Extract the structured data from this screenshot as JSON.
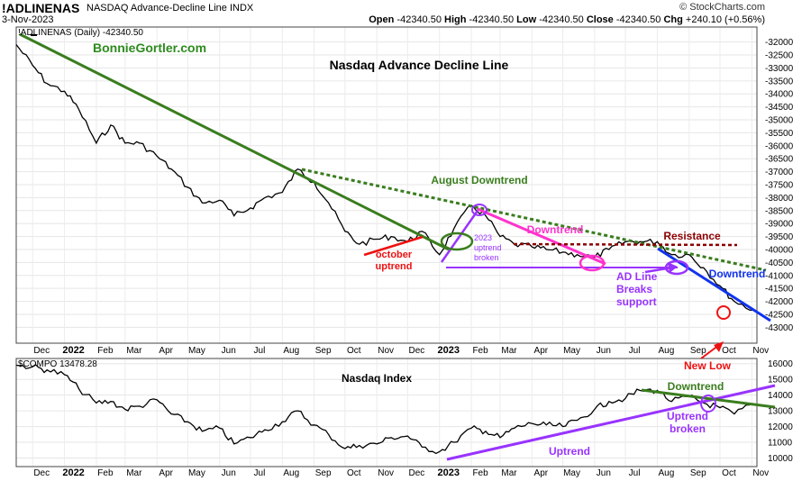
{
  "header": {
    "symbol": "!ADLINENAS",
    "description": "NASDAQ Advance-Decline Line INDX",
    "date": "3-Nov-2023",
    "brand": "© StockCharts.com",
    "ohlc": {
      "open_label": "Open",
      "open": "-42340.50",
      "high_label": "High",
      "high": "-42340.50",
      "low_label": "Low",
      "low": "-42340.50",
      "close_label": "Close",
      "close": "-42340.50",
      "chg_label": "Chg",
      "chg": "+240.10 (+0.56%)"
    }
  },
  "top_panel": {
    "legend": "!ADLINENAS (Daily) -42340.50",
    "author": "BonnieGortler.com",
    "title": "Nasdaq Advance Decline Line",
    "annotations": {
      "august_downtrend": "August Downtrend",
      "downtrend_pink": "Downtrend",
      "resistance": "Resistance",
      "downtrend_blue": "Downtrend",
      "october_uptrend": [
        "october",
        "uptrend"
      ],
      "uptrend_2023": [
        "2023",
        "uptrend",
        "broken"
      ],
      "ad_breaks": [
        "AD Line",
        "Breaks",
        "support"
      ],
      "new_low": "New Low"
    }
  },
  "bottom_panel": {
    "legend": "$COMPO 13478.28",
    "title": "Nasdaq Index",
    "annotations": {
      "downtrend": "Downtrend",
      "uptrend_broken": [
        "Uptrend",
        "broken"
      ],
      "uptrend": "Uptrend"
    }
  },
  "x_axis_labels": [
    "Dec",
    "2022",
    "Feb",
    "Mar",
    "Apr",
    "May",
    "Jun",
    "Jul",
    "Aug",
    "Sep",
    "Oct",
    "Nov",
    "Dec",
    "2023",
    "Feb",
    "Mar",
    "Apr",
    "May",
    "Jun",
    "Jul",
    "Aug",
    "Sep",
    "Oct",
    "Nov"
  ],
  "colors": {
    "green_trend": "#3a7d1e",
    "pink": "#ff33cc",
    "purple": "#9933ff",
    "red": "#ee1111",
    "blue": "#1133ee",
    "dark_red": "#8b0000",
    "brand_green": "#2e8b1e"
  },
  "chart_data": [
    {
      "type": "line",
      "title": "Nasdaq Advance Decline Line",
      "series": [
        {
          "name": "!ADLINENAS (Daily)",
          "x": [
            "2021-11-15",
            "2021-12-01",
            "2021-12-15",
            "2022-01-01",
            "2022-01-15",
            "2022-02-01",
            "2022-02-15",
            "2022-03-01",
            "2022-03-15",
            "2022-04-01",
            "2022-04-15",
            "2022-05-01",
            "2022-05-15",
            "2022-06-01",
            "2022-06-15",
            "2022-07-01",
            "2022-07-15",
            "2022-08-01",
            "2022-08-16",
            "2022-09-01",
            "2022-09-15",
            "2022-10-01",
            "2022-10-15",
            "2022-11-01",
            "2022-11-15",
            "2022-12-01",
            "2022-12-15",
            "2023-01-01",
            "2023-01-15",
            "2023-02-01",
            "2023-02-15",
            "2023-03-01",
            "2023-03-15",
            "2023-04-01",
            "2023-04-15",
            "2023-05-01",
            "2023-05-15",
            "2023-06-01",
            "2023-06-15",
            "2023-07-01",
            "2023-07-15",
            "2023-08-01",
            "2023-08-15",
            "2023-09-01",
            "2023-09-15",
            "2023-10-01",
            "2023-10-15",
            "2023-11-03"
          ],
          "y": [
            -32100,
            -32900,
            -33600,
            -33900,
            -34600,
            -35900,
            -35200,
            -35900,
            -35900,
            -36400,
            -36900,
            -37600,
            -38200,
            -38100,
            -38700,
            -38400,
            -38000,
            -37800,
            -36900,
            -37400,
            -38200,
            -39300,
            -39800,
            -39600,
            -39500,
            -39700,
            -39300,
            -40200,
            -39200,
            -38300,
            -38700,
            -39500,
            -39800,
            -39900,
            -40000,
            -40100,
            -40200,
            -40300,
            -40000,
            -39700,
            -39700,
            -39700,
            -40200,
            -40200,
            -40700,
            -41400,
            -42000,
            -42340
          ]
        }
      ],
      "ylim": [
        -43300,
        -31700
      ],
      "y_ticks": [
        -32000,
        -32500,
        -33000,
        -33500,
        -34000,
        -34500,
        -35000,
        -35500,
        -36000,
        -36500,
        -37000,
        -37500,
        -38000,
        -38500,
        -39000,
        -39500,
        -40000,
        -40500,
        -41000,
        -41500,
        -42000,
        -42500,
        -43000
      ]
    },
    {
      "type": "line",
      "title": "Nasdaq Index",
      "series": [
        {
          "name": "$COMPO",
          "x": [
            "2021-11-15",
            "2021-12-01",
            "2021-12-15",
            "2022-01-01",
            "2022-01-15",
            "2022-02-01",
            "2022-02-15",
            "2022-03-01",
            "2022-03-15",
            "2022-04-01",
            "2022-04-15",
            "2022-05-01",
            "2022-05-15",
            "2022-06-01",
            "2022-06-15",
            "2022-07-01",
            "2022-07-15",
            "2022-08-01",
            "2022-08-16",
            "2022-09-01",
            "2022-09-15",
            "2022-10-01",
            "2022-10-15",
            "2022-11-01",
            "2022-11-15",
            "2022-12-01",
            "2022-12-15",
            "2023-01-01",
            "2023-01-15",
            "2023-02-01",
            "2023-02-15",
            "2023-03-01",
            "2023-03-15",
            "2023-04-01",
            "2023-04-15",
            "2023-05-01",
            "2023-05-15",
            "2023-06-01",
            "2023-06-15",
            "2023-07-01",
            "2023-07-15",
            "2023-08-01",
            "2023-08-15",
            "2023-09-01",
            "2023-09-15",
            "2023-10-01",
            "2023-10-15",
            "2023-11-03"
          ],
          "y": [
            15900,
            15800,
            15600,
            15300,
            14400,
            13500,
            13600,
            13100,
            13300,
            13700,
            12800,
            12300,
            11700,
            11900,
            10900,
            11300,
            11800,
            12300,
            13000,
            12100,
            11500,
            10600,
            10800,
            10900,
            11300,
            11400,
            10700,
            10400,
            11000,
            11900,
            11700,
            11300,
            11900,
            12200,
            12100,
            12000,
            12400,
            13100,
            13600,
            13800,
            14300,
            14300,
            13600,
            13900,
            13500,
            13200,
            12800,
            13478
          ]
        }
      ],
      "ylim": [
        9800,
        16100
      ],
      "y_ticks": [
        10000,
        11000,
        12000,
        13000,
        14000,
        15000,
        16000
      ]
    }
  ]
}
